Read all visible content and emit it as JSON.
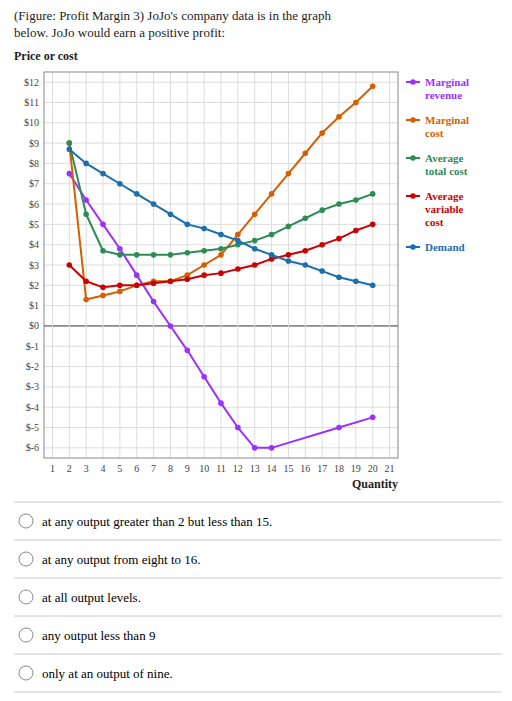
{
  "chart_data": {
    "type": "line",
    "title": "(Figure: Profit Margin 3) JoJo's company data is in the graph\nbelow. JoJo would earn a positive profit:",
    "y_label": "Price or cost",
    "x_label": "Quantity",
    "xlim": [
      0.5,
      21.5
    ],
    "ylim": [
      -6.5,
      12.5
    ],
    "xticks": [
      1,
      2,
      3,
      4,
      5,
      6,
      7,
      8,
      9,
      10,
      11,
      12,
      13,
      14,
      15,
      16,
      17,
      18,
      19,
      20,
      21
    ],
    "yticks": [
      {
        "value": -6,
        "label": "$-6"
      },
      {
        "value": -5,
        "label": "$-5"
      },
      {
        "value": -4,
        "label": "$-4"
      },
      {
        "value": -3,
        "label": "$-3"
      },
      {
        "value": -2,
        "label": "$-2"
      },
      {
        "value": -1,
        "label": "$-1"
      },
      {
        "value": 0,
        "label": "$0"
      },
      {
        "value": 1,
        "label": "$1"
      },
      {
        "value": 2,
        "label": "$2"
      },
      {
        "value": 3,
        "label": "$3"
      },
      {
        "value": 4,
        "label": "$4"
      },
      {
        "value": 5,
        "label": "$5"
      },
      {
        "value": 6,
        "label": "$6"
      },
      {
        "value": 7,
        "label": "$7"
      },
      {
        "value": 8,
        "label": "$8"
      },
      {
        "value": 9,
        "label": "$9"
      },
      {
        "value": 10,
        "label": "$10"
      },
      {
        "value": 11,
        "label": "$11"
      },
      {
        "value": 12,
        "label": "$12"
      }
    ],
    "grid": true,
    "legend": "right",
    "marker": "circle",
    "line_style": "solid",
    "series": [
      {
        "name": "Marginal revenue",
        "color": "#9b30ff",
        "x": [
          2,
          3,
          4,
          5,
          6,
          7,
          8,
          9,
          10,
          11,
          12,
          13,
          14,
          18,
          20
        ],
        "values": [
          7.5,
          6.2,
          5.0,
          3.8,
          2.5,
          1.2,
          0.0,
          -1.2,
          -2.5,
          -3.8,
          -5.0,
          -6.0,
          -6.0,
          -5.0,
          -4.5
        ]
      },
      {
        "name": "Marginal cost",
        "color": "#d45f00",
        "x": [
          2,
          3,
          4,
          5,
          6,
          7,
          8,
          9,
          10,
          11,
          12,
          13,
          14,
          15,
          16,
          17,
          18,
          19,
          20
        ],
        "values": [
          9.0,
          1.3,
          1.5,
          1.7,
          2.0,
          2.2,
          2.2,
          2.5,
          3.0,
          3.5,
          4.5,
          5.5,
          6.5,
          7.5,
          8.5,
          9.5,
          10.3,
          11.0,
          11.8
        ]
      },
      {
        "name": "Average total cost",
        "color": "#2e8b57",
        "x": [
          2,
          3,
          4,
          5,
          6,
          7,
          8,
          9,
          10,
          11,
          12,
          13,
          14,
          15,
          16,
          17,
          18,
          19,
          20
        ],
        "values": [
          9.0,
          5.5,
          3.7,
          3.5,
          3.5,
          3.5,
          3.5,
          3.6,
          3.7,
          3.8,
          4.0,
          4.2,
          4.5,
          4.9,
          5.3,
          5.7,
          6.0,
          6.2,
          6.5
        ]
      },
      {
        "name": "Average variable cost",
        "color": "#cc0000",
        "x": [
          2,
          3,
          4,
          5,
          6,
          7,
          8,
          9,
          10,
          11,
          12,
          13,
          14,
          15,
          16,
          17,
          18,
          19,
          20
        ],
        "values": [
          3.0,
          2.2,
          1.9,
          2.0,
          2.0,
          2.1,
          2.2,
          2.3,
          2.5,
          2.6,
          2.8,
          3.0,
          3.3,
          3.5,
          3.7,
          4.0,
          4.3,
          4.7,
          5.0
        ]
      },
      {
        "name": "Demand",
        "color": "#1c6fad",
        "x": [
          2,
          3,
          4,
          5,
          6,
          7,
          8,
          9,
          10,
          11,
          12,
          13,
          14,
          15,
          16,
          17,
          18,
          19,
          20
        ],
        "values": [
          8.7,
          8.0,
          7.5,
          7.0,
          6.5,
          6.0,
          5.5,
          5.0,
          4.8,
          4.5,
          4.2,
          3.8,
          3.5,
          3.2,
          3.0,
          2.7,
          2.4,
          2.2,
          2.0
        ]
      }
    ],
    "annotations": [
      "at any output greater than 2 but less than 15.",
      "at any output from eight to 16.",
      "at all output levels.",
      "any output less than 9",
      "only at an output of nine."
    ]
  }
}
